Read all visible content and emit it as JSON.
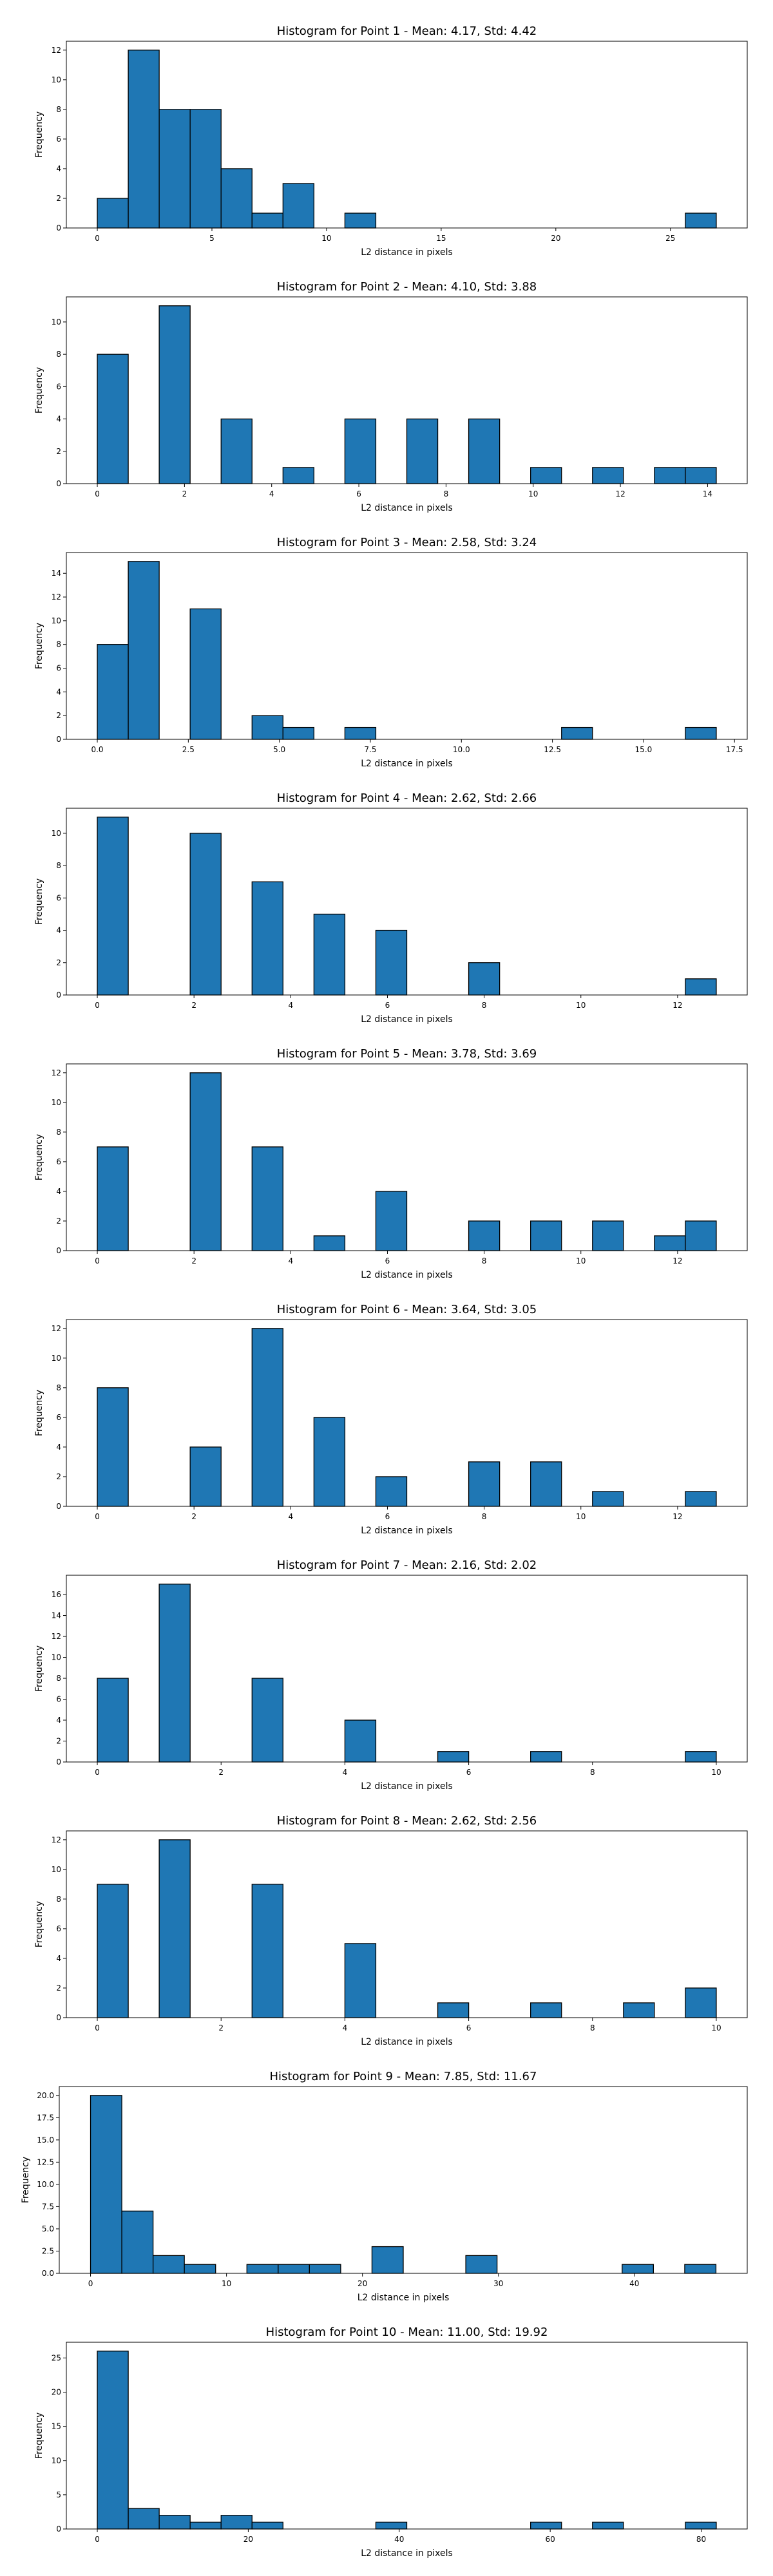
{
  "figure": {
    "rows": 10,
    "bar_color": "#1f77b4",
    "edge_color": "#000000",
    "background": "#ffffff"
  },
  "chart_data": [
    {
      "type": "bar",
      "title": "Histogram for Point 1 - Mean: 4.17, Std: 4.42",
      "xlabel": "L2 distance in pixels",
      "ylabel": "Frequency",
      "bin_start": 0.0,
      "bin_width": 1.35,
      "values": [
        2,
        12,
        8,
        8,
        4,
        1,
        3,
        0,
        1,
        0,
        0,
        0,
        0,
        0,
        0,
        0,
        0,
        0,
        0,
        1
      ],
      "xlim": [
        -1.35,
        28.35
      ],
      "ylim": [
        0,
        12.6
      ],
      "xticks": [
        0,
        5,
        10,
        15,
        20,
        25
      ],
      "xticklabels": [
        "0",
        "5",
        "10",
        "15",
        "20",
        "25"
      ],
      "yticks": [
        0,
        2,
        4,
        6,
        8,
        10,
        12
      ],
      "yticklabels": [
        "0",
        "2",
        "4",
        "6",
        "8",
        "10",
        "12"
      ],
      "grid": false
    },
    {
      "type": "bar",
      "title": "Histogram for Point 2 - Mean: 4.10, Std: 3.88",
      "xlabel": "L2 distance in pixels",
      "ylabel": "Frequency",
      "bin_start": 0.0,
      "bin_width": 0.71,
      "values": [
        8,
        0,
        11,
        0,
        4,
        0,
        1,
        0,
        4,
        0,
        4,
        0,
        4,
        0,
        1,
        0,
        1,
        0,
        1,
        1
      ],
      "xlim": [
        -0.71,
        14.91
      ],
      "ylim": [
        0,
        11.55
      ],
      "xticks": [
        0,
        2,
        4,
        6,
        8,
        10,
        12,
        14
      ],
      "xticklabels": [
        "0",
        "2",
        "4",
        "6",
        "8",
        "10",
        "12",
        "14"
      ],
      "yticks": [
        0,
        2,
        4,
        6,
        8,
        10
      ],
      "yticklabels": [
        "0",
        "2",
        "4",
        "6",
        "8",
        "10"
      ],
      "grid": false
    },
    {
      "type": "bar",
      "title": "Histogram for Point 3 - Mean: 2.58, Std: 3.24",
      "xlabel": "L2 distance in pixels",
      "ylabel": "Frequency",
      "bin_start": 0.0,
      "bin_width": 0.85,
      "values": [
        8,
        15,
        0,
        11,
        0,
        2,
        1,
        0,
        1,
        0,
        0,
        0,
        0,
        0,
        0,
        1,
        0,
        0,
        0,
        1
      ],
      "xlim": [
        -0.85,
        17.85
      ],
      "ylim": [
        0,
        15.75
      ],
      "xticks": [
        0,
        2.5,
        5,
        7.5,
        10,
        12.5,
        15,
        17.5
      ],
      "xticklabels": [
        "0.0",
        "2.5",
        "5.0",
        "7.5",
        "10.0",
        "12.5",
        "15.0",
        "17.5"
      ],
      "yticks": [
        0,
        2,
        4,
        6,
        8,
        10,
        12,
        14
      ],
      "yticklabels": [
        "0",
        "2",
        "4",
        "6",
        "8",
        "10",
        "12",
        "14"
      ],
      "grid": false
    },
    {
      "type": "bar",
      "title": "Histogram for Point 4 - Mean: 2.62, Std: 2.66",
      "xlabel": "L2 distance in pixels",
      "ylabel": "Frequency",
      "bin_start": 0.0,
      "bin_width": 0.64,
      "values": [
        11,
        0,
        0,
        10,
        0,
        7,
        0,
        5,
        0,
        4,
        0,
        0,
        2,
        0,
        0,
        0,
        0,
        0,
        0,
        1
      ],
      "xlim": [
        -0.64,
        13.44
      ],
      "ylim": [
        0,
        11.55
      ],
      "xticks": [
        0,
        2,
        4,
        6,
        8,
        10,
        12
      ],
      "xticklabels": [
        "0",
        "2",
        "4",
        "6",
        "8",
        "10",
        "12"
      ],
      "yticks": [
        0,
        2,
        4,
        6,
        8,
        10
      ],
      "yticklabels": [
        "0",
        "2",
        "4",
        "6",
        "8",
        "10"
      ],
      "grid": false
    },
    {
      "type": "bar",
      "title": "Histogram for Point 5 - Mean: 3.78, Std: 3.69",
      "xlabel": "L2 distance in pixels",
      "ylabel": "Frequency",
      "bin_start": 0.0,
      "bin_width": 0.64,
      "values": [
        7,
        0,
        0,
        12,
        0,
        7,
        0,
        1,
        0,
        4,
        0,
        0,
        2,
        0,
        2,
        0,
        2,
        0,
        1,
        2
      ],
      "xlim": [
        -0.64,
        13.44
      ],
      "ylim": [
        0,
        12.6
      ],
      "xticks": [
        0,
        2,
        4,
        6,
        8,
        10,
        12
      ],
      "xticklabels": [
        "0",
        "2",
        "4",
        "6",
        "8",
        "10",
        "12"
      ],
      "yticks": [
        0,
        2,
        4,
        6,
        8,
        10,
        12
      ],
      "yticklabels": [
        "0",
        "2",
        "4",
        "6",
        "8",
        "10",
        "12"
      ],
      "grid": false
    },
    {
      "type": "bar",
      "title": "Histogram for Point 6 - Mean: 3.64, Std: 3.05",
      "xlabel": "L2 distance in pixels",
      "ylabel": "Frequency",
      "bin_start": 0.0,
      "bin_width": 0.64,
      "values": [
        8,
        0,
        0,
        4,
        0,
        12,
        0,
        6,
        0,
        2,
        0,
        0,
        3,
        0,
        3,
        0,
        1,
        0,
        0,
        1
      ],
      "xlim": [
        -0.64,
        13.44
      ],
      "ylim": [
        0,
        12.6
      ],
      "xticks": [
        0,
        2,
        4,
        6,
        8,
        10,
        12
      ],
      "xticklabels": [
        "0",
        "2",
        "4",
        "6",
        "8",
        "10",
        "12"
      ],
      "yticks": [
        0,
        2,
        4,
        6,
        8,
        10,
        12
      ],
      "yticklabels": [
        "0",
        "2",
        "4",
        "6",
        "8",
        "10",
        "12"
      ],
      "grid": false
    },
    {
      "type": "bar",
      "title": "Histogram for Point 7 - Mean: 2.16, Std: 2.02",
      "xlabel": "L2 distance in pixels",
      "ylabel": "Frequency",
      "bin_start": 0.0,
      "bin_width": 0.5,
      "values": [
        8,
        0,
        17,
        0,
        0,
        8,
        0,
        0,
        4,
        0,
        0,
        1,
        0,
        0,
        1,
        0,
        0,
        0,
        0,
        1
      ],
      "xlim": [
        -0.5,
        10.5
      ],
      "ylim": [
        0,
        17.85
      ],
      "xticks": [
        0,
        2,
        4,
        6,
        8,
        10
      ],
      "xticklabels": [
        "0",
        "2",
        "4",
        "6",
        "8",
        "10"
      ],
      "yticks": [
        0,
        2,
        4,
        6,
        8,
        10,
        12,
        14,
        16
      ],
      "yticklabels": [
        "0",
        "2",
        "4",
        "6",
        "8",
        "10",
        "12",
        "14",
        "16"
      ],
      "grid": false
    },
    {
      "type": "bar",
      "title": "Histogram for Point 8 - Mean: 2.62, Std: 2.56",
      "xlabel": "L2 distance in pixels",
      "ylabel": "Frequency",
      "bin_start": 0.0,
      "bin_width": 0.5,
      "values": [
        9,
        0,
        12,
        0,
        0,
        9,
        0,
        0,
        5,
        0,
        0,
        1,
        0,
        0,
        1,
        0,
        0,
        1,
        0,
        2
      ],
      "xlim": [
        -0.5,
        10.5
      ],
      "ylim": [
        0,
        12.6
      ],
      "xticks": [
        0,
        2,
        4,
        6,
        8,
        10
      ],
      "xticklabels": [
        "0",
        "2",
        "4",
        "6",
        "8",
        "10"
      ],
      "yticks": [
        0,
        2,
        4,
        6,
        8,
        10,
        12
      ],
      "yticklabels": [
        "0",
        "2",
        "4",
        "6",
        "8",
        "10",
        "12"
      ],
      "grid": false
    },
    {
      "type": "bar",
      "title": "Histogram for Point 9 - Mean: 7.85, Std: 11.67",
      "xlabel": "L2 distance in pixels",
      "ylabel": "Frequency",
      "bin_start": 0.0,
      "bin_width": 2.3,
      "values": [
        20,
        7,
        2,
        1,
        0,
        1,
        1,
        1,
        0,
        3,
        0,
        0,
        2,
        0,
        0,
        0,
        0,
        1,
        0,
        1
      ],
      "xlim": [
        -2.3,
        48.3
      ],
      "ylim": [
        0,
        21.0
      ],
      "xticks": [
        0,
        10,
        20,
        30,
        40
      ],
      "xticklabels": [
        "0",
        "10",
        "20",
        "30",
        "40"
      ],
      "yticks": [
        0,
        2.5,
        5,
        7.5,
        10,
        12.5,
        15,
        17.5,
        20
      ],
      "yticklabels": [
        "0.0",
        "2.5",
        "5.0",
        "7.5",
        "10.0",
        "12.5",
        "15.0",
        "17.5",
        "20.0"
      ],
      "grid": false
    },
    {
      "type": "bar",
      "title": "Histogram for Point 10 - Mean: 11.00, Std: 19.92",
      "xlabel": "L2 distance in pixels",
      "ylabel": "Frequency",
      "bin_start": 0.0,
      "bin_width": 4.1,
      "values": [
        26,
        3,
        2,
        1,
        2,
        1,
        0,
        0,
        0,
        1,
        0,
        0,
        0,
        0,
        1,
        0,
        1,
        0,
        0,
        1
      ],
      "xlim": [
        -4.1,
        86.1
      ],
      "ylim": [
        0,
        27.3
      ],
      "xticks": [
        0,
        20,
        40,
        60,
        80
      ],
      "xticklabels": [
        "0",
        "20",
        "40",
        "60",
        "80"
      ],
      "yticks": [
        0,
        5,
        10,
        15,
        20,
        25
      ],
      "yticklabels": [
        "0",
        "5",
        "10",
        "15",
        "20",
        "25"
      ],
      "grid": false
    }
  ]
}
